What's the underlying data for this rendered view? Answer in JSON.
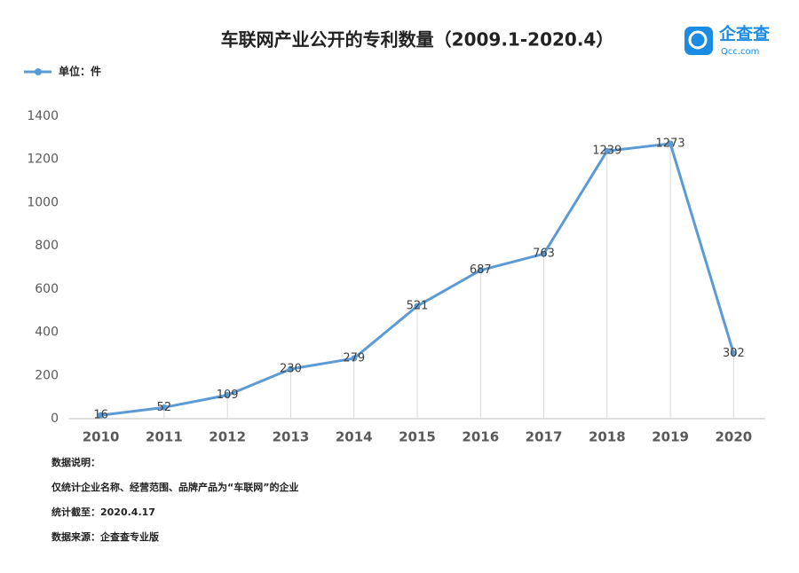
{
  "chart_data": {
    "type": "line",
    "title": "车联网产业公开的专利数量（2009.1-2020.4）",
    "categories": [
      "2010",
      "2011",
      "2012",
      "2013",
      "2014",
      "2015",
      "2016",
      "2017",
      "2018",
      "2019",
      "2020"
    ],
    "series": [
      {
        "name": "单位：件",
        "color": "#5b9bd5",
        "values": [
          16,
          52,
          109,
          230,
          279,
          521,
          687,
          763,
          1239,
          1273,
          302
        ]
      }
    ],
    "ylim": [
      0,
      1400
    ],
    "yticks": [
      0,
      200,
      400,
      600,
      800,
      1000,
      1200,
      1400
    ],
    "legend": "top-left",
    "drop_lines": true
  },
  "notes": [
    "数据说明：",
    "仅统计企业名称、经营范围、品牌产品为“车联网”的企业",
    "统计截至：2020.4.17",
    "数据来源：企查查专业版"
  ],
  "logo": {
    "name": "企查查",
    "site": "Qcc.com"
  }
}
